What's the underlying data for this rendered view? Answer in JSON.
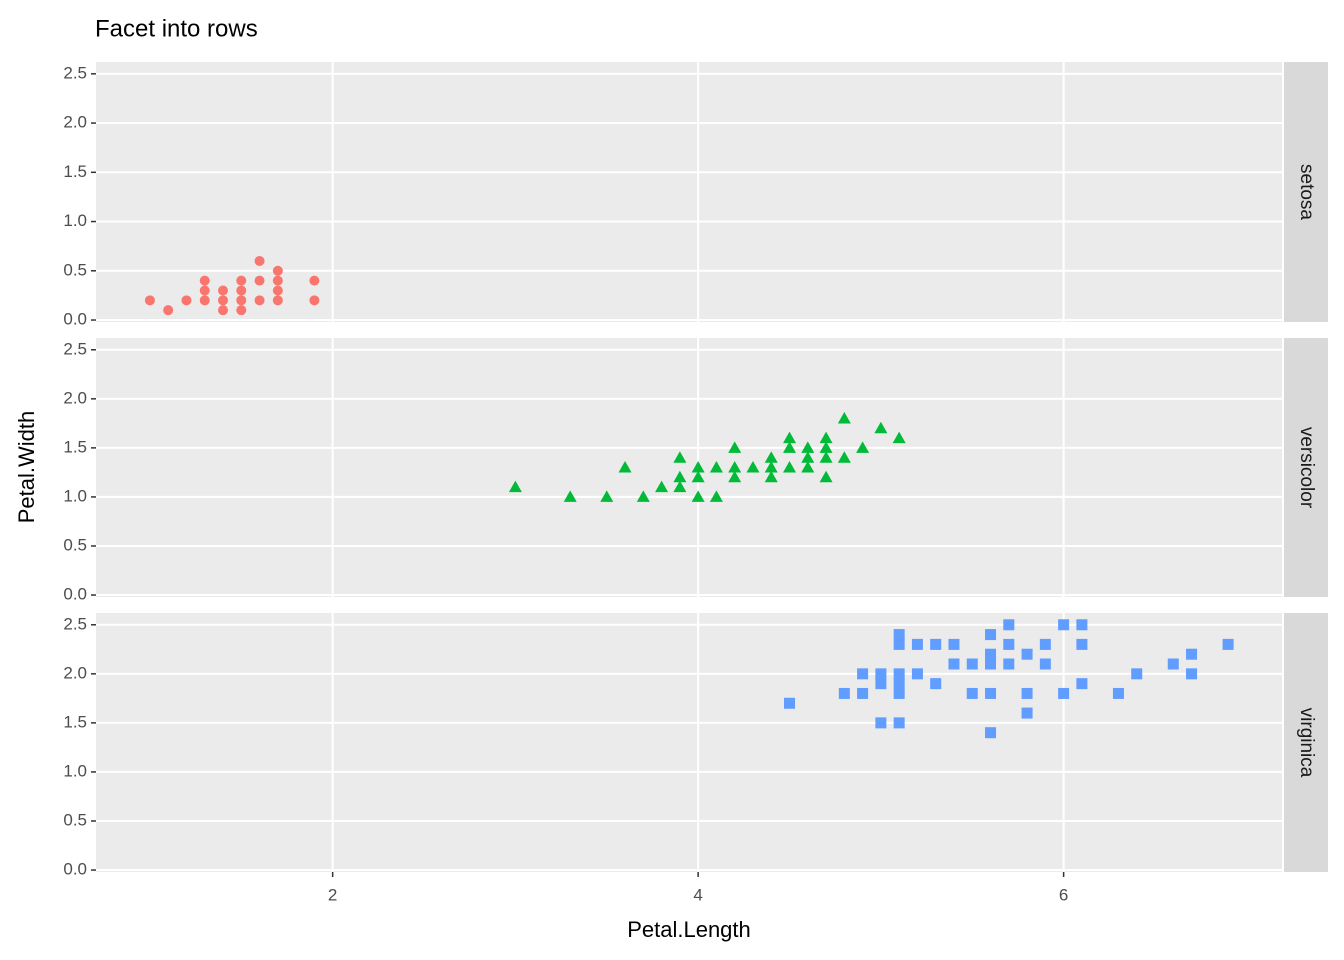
{
  "chart_data": {
    "type": "scatter",
    "title": "Facet into rows",
    "x_label": "Petal.Length",
    "y_label": "Petal.Width",
    "xlim": [
      0.705,
      7.195
    ],
    "xticks": [
      2,
      4,
      6
    ],
    "ylim": [
      -0.02,
      2.62
    ],
    "yticks": [
      {
        "value": 0,
        "label": "0.0"
      },
      0.5,
      {
        "value": 1,
        "label": "1.0"
      },
      1.5,
      {
        "value": 2,
        "label": "2.0"
      },
      2.5
    ],
    "grid": true,
    "facets": [
      {
        "name": "setosa",
        "color": "#F8766D",
        "shape": "circle",
        "x": [
          1.0,
          1.1,
          1.2,
          1.3,
          1.3,
          1.3,
          1.4,
          1.4,
          1.4,
          1.5,
          1.5,
          1.5,
          1.5,
          1.6,
          1.6,
          1.6,
          1.7,
          1.7,
          1.7,
          1.7,
          1.9,
          1.9
        ],
        "y": [
          0.2,
          0.1,
          0.2,
          0.2,
          0.3,
          0.4,
          0.1,
          0.2,
          0.3,
          0.1,
          0.2,
          0.3,
          0.4,
          0.2,
          0.4,
          0.6,
          0.2,
          0.3,
          0.4,
          0.5,
          0.2,
          0.4
        ]
      },
      {
        "name": "versicolor",
        "color": "#00BA38",
        "shape": "triangle",
        "x": [
          3.0,
          3.3,
          3.5,
          3.6,
          3.7,
          3.8,
          3.9,
          3.9,
          3.9,
          4.0,
          4.0,
          4.0,
          4.1,
          4.1,
          4.2,
          4.2,
          4.2,
          4.3,
          4.4,
          4.4,
          4.4,
          4.5,
          4.5,
          4.5,
          4.6,
          4.6,
          4.6,
          4.7,
          4.7,
          4.7,
          4.7,
          4.8,
          4.8,
          4.9,
          5.0,
          5.1
        ],
        "y": [
          1.1,
          1.0,
          1.0,
          1.3,
          1.0,
          1.1,
          1.1,
          1.2,
          1.4,
          1.0,
          1.2,
          1.3,
          1.0,
          1.3,
          1.2,
          1.3,
          1.5,
          1.3,
          1.2,
          1.3,
          1.4,
          1.3,
          1.5,
          1.6,
          1.3,
          1.4,
          1.5,
          1.2,
          1.4,
          1.5,
          1.6,
          1.4,
          1.8,
          1.5,
          1.7,
          1.6
        ]
      },
      {
        "name": "virginica",
        "color": "#619CFF",
        "shape": "square",
        "x": [
          4.5,
          4.8,
          4.9,
          4.9,
          5.0,
          5.0,
          5.0,
          5.1,
          5.1,
          5.1,
          5.1,
          5.1,
          5.1,
          5.2,
          5.2,
          5.3,
          5.3,
          5.4,
          5.4,
          5.5,
          5.5,
          5.6,
          5.6,
          5.6,
          5.6,
          5.6,
          5.7,
          5.7,
          5.7,
          5.8,
          5.8,
          5.8,
          5.9,
          5.9,
          6.0,
          6.0,
          6.1,
          6.1,
          6.1,
          6.3,
          6.4,
          6.6,
          6.7,
          6.7,
          6.9
        ],
        "y": [
          1.7,
          1.8,
          1.8,
          2.0,
          1.5,
          1.9,
          2.0,
          1.5,
          1.8,
          1.9,
          2.0,
          2.3,
          2.4,
          2.0,
          2.3,
          1.9,
          2.3,
          2.1,
          2.3,
          1.8,
          2.1,
          1.4,
          1.8,
          2.1,
          2.2,
          2.4,
          2.1,
          2.3,
          2.5,
          1.6,
          1.8,
          2.2,
          2.1,
          2.3,
          1.8,
          2.5,
          1.9,
          2.3,
          2.5,
          1.8,
          2.0,
          2.1,
          2.0,
          2.2,
          2.3
        ]
      }
    ]
  }
}
